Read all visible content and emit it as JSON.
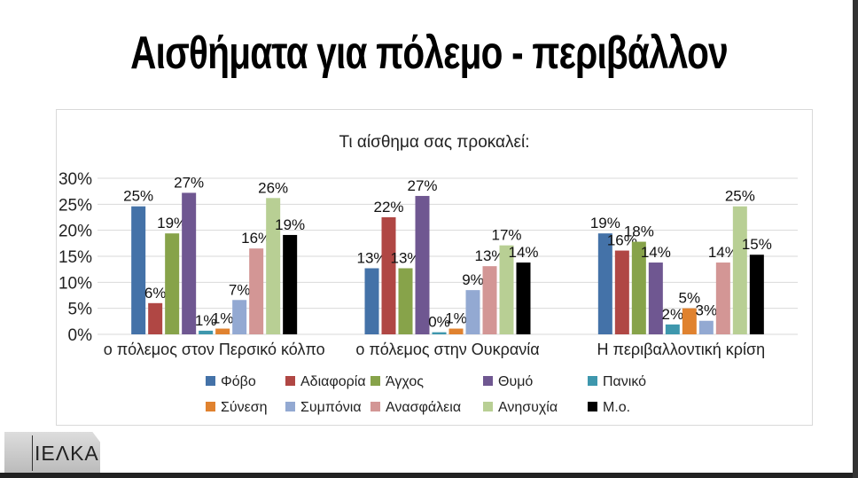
{
  "slide": {
    "title": "Αισθήματα για πόλεμο - περιβάλλον",
    "logo_text": "ΙΕΛΚΑ"
  },
  "chart_data": {
    "type": "bar",
    "title": "Τι αίσθημα σας προκαλεί:",
    "categories": [
      "ο πόλεμος στον Περσικό κόλπο",
      "ο πόλεμος στην Ουκρανία",
      "Η περιβαλλοντική κρίση"
    ],
    "ylim": [
      0,
      30
    ],
    "yticks": [
      "0%",
      "5%",
      "10%",
      "15%",
      "20%",
      "25%",
      "30%"
    ],
    "grid": true,
    "legend": "bottom",
    "series": [
      {
        "name": "Φόβο",
        "color": "#4472a8",
        "values": [
          24.6,
          12.7,
          19.4
        ],
        "labels": [
          "25%",
          "13%",
          "19%"
        ]
      },
      {
        "name": "Αδιαφορία",
        "color": "#b04744",
        "values": [
          6.0,
          22.5,
          16.1
        ],
        "labels": [
          "6%",
          "22%",
          "16%"
        ]
      },
      {
        "name": "Άγχος",
        "color": "#87a34a",
        "values": [
          19.4,
          12.7,
          17.8
        ],
        "labels": [
          "19%",
          "13%",
          "18%"
        ]
      },
      {
        "name": "Θυμό",
        "color": "#6f5791",
        "values": [
          27.2,
          26.6,
          13.8
        ],
        "labels": [
          "27%",
          "27%",
          "14%"
        ]
      },
      {
        "name": "Πανικό",
        "color": "#3e97ad",
        "values": [
          0.7,
          0.4,
          1.9
        ],
        "labels": [
          "1%",
          "0%",
          "2%"
        ]
      },
      {
        "name": "Σύνεση",
        "color": "#e0822f",
        "values": [
          1.1,
          1.1,
          5.0
        ],
        "labels": [
          "1%",
          "1%",
          "5%"
        ]
      },
      {
        "name": "Συμπόνια",
        "color": "#93a9d2",
        "values": [
          6.6,
          8.5,
          2.6
        ],
        "labels": [
          "7%",
          "9%",
          "3%"
        ]
      },
      {
        "name": "Ανασφάλεια",
        "color": "#d39695",
        "values": [
          16.5,
          13.1,
          13.8
        ],
        "labels": [
          "16%",
          "13%",
          "14%"
        ]
      },
      {
        "name": "Ανησυχία",
        "color": "#b8cf94",
        "values": [
          26.2,
          17.1,
          24.6
        ],
        "labels": [
          "26%",
          "17%",
          "25%"
        ]
      },
      {
        "name": "Μ.ο.",
        "color": "#000000",
        "values": [
          19.1,
          13.8,
          15.3
        ],
        "labels": [
          "19%",
          "14%",
          "15%"
        ]
      }
    ]
  }
}
